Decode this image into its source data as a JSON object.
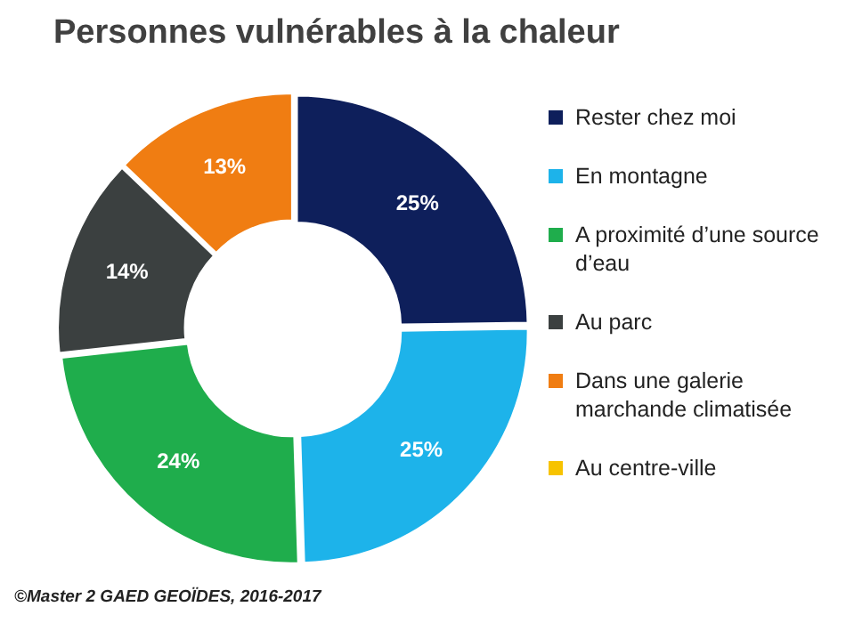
{
  "chart_data": {
    "type": "donut",
    "title": "Personnes vulnérables à la chaleur",
    "categories": [
      "Rester chez moi",
      "En montagne",
      "A proximité d’une source d’eau",
      "Au parc",
      "Dans une galerie marchande climatisée",
      "Au centre-ville"
    ],
    "values": [
      25,
      25,
      24,
      14,
      13,
      0
    ],
    "colors": [
      "#0e1f5b",
      "#1db3ea",
      "#1fad4c",
      "#3b4040",
      "#f07d12",
      "#f7c300"
    ],
    "value_labels": [
      "25%",
      "25%",
      "24%",
      "14%",
      "13%",
      null
    ],
    "legend": "right",
    "annotations": [
      "©Master 2 GAED GEOÏDES, 2016-2017"
    ]
  }
}
